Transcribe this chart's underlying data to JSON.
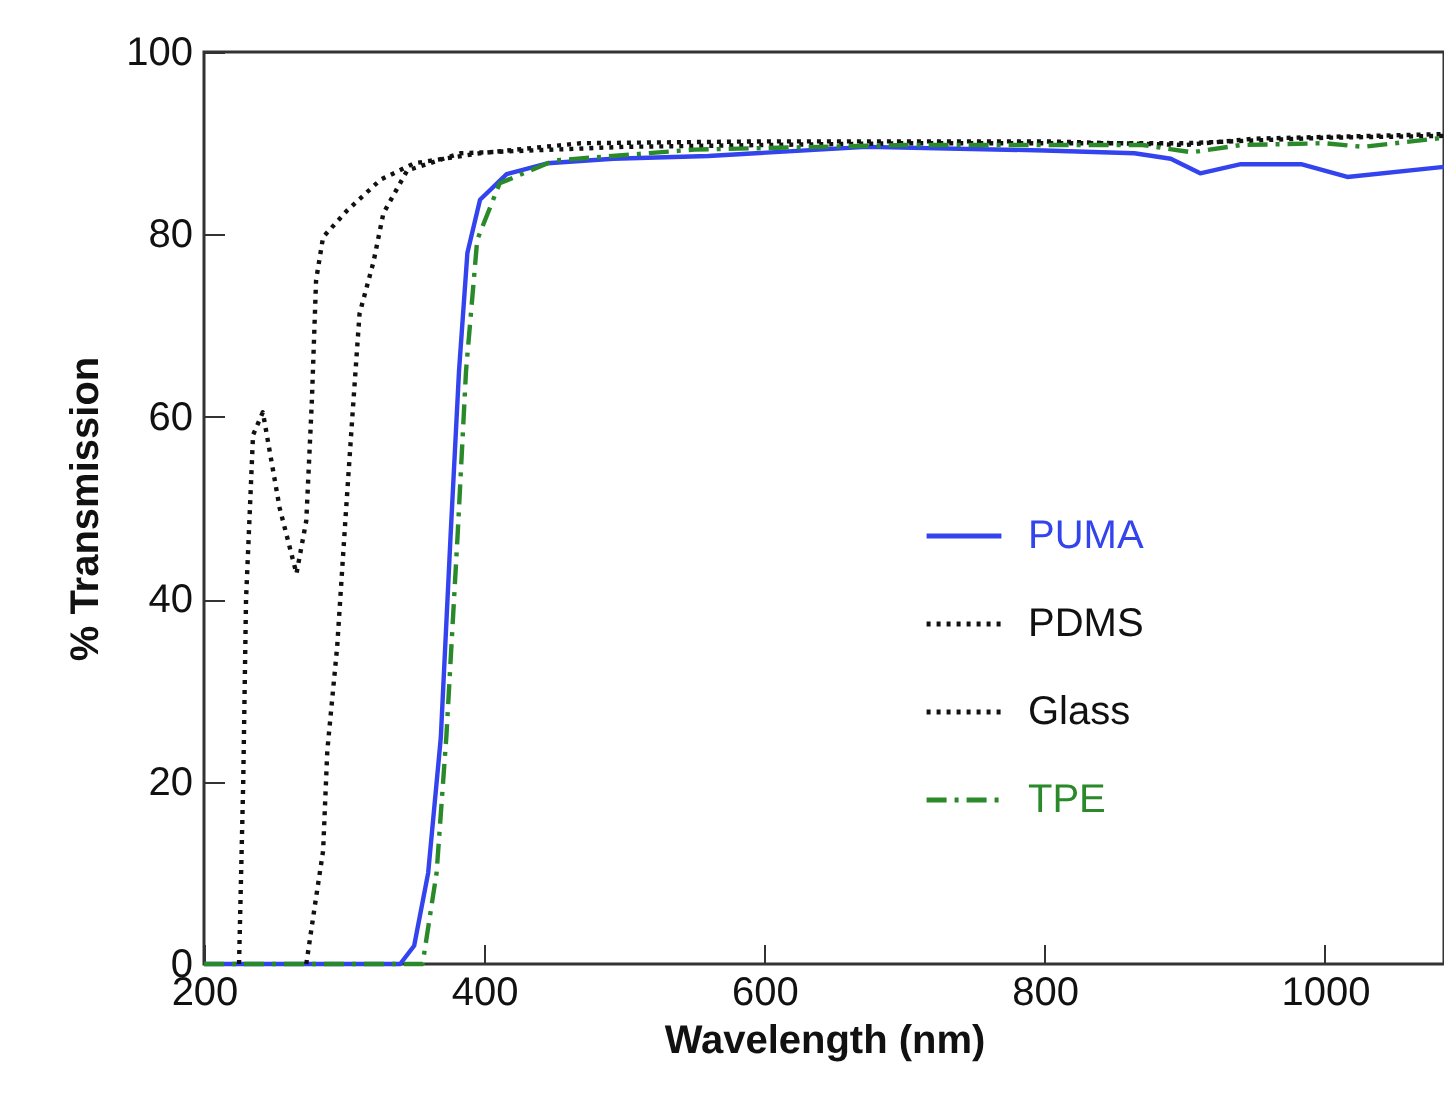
{
  "chart_data": {
    "type": "line",
    "xlabel": "Wavelength (nm)",
    "ylabel": "% Transmission",
    "xlim": [
      200,
      1085
    ],
    "ylim": [
      0,
      100
    ],
    "xticks": [
      200,
      400,
      600,
      800,
      1000
    ],
    "yticks": [
      0,
      20,
      40,
      60,
      80,
      100
    ],
    "grid": false,
    "legend": "right",
    "series": [
      {
        "name": "PUMA",
        "color": "#3344ee",
        "line_style": "solid",
        "x": [
          200,
          340,
          350,
          360,
          369,
          376,
          382,
          388,
          397,
          416,
          445,
          492,
          560,
          673,
          800,
          864,
          890,
          911,
          940,
          983,
          1016,
          1085
        ],
        "values": [
          0,
          0,
          2,
          10,
          24.8,
          47,
          65,
          78,
          83.8,
          86.6,
          87.8,
          88.3,
          88.6,
          89.6,
          89.2,
          88.9,
          88.3,
          86.7,
          87.7,
          87.7,
          86.3,
          87.4
        ]
      },
      {
        "name": "PDMS",
        "color": "#111111",
        "line_style": "dotted",
        "x": [
          225,
          228,
          230,
          235,
          242,
          254,
          266,
          273,
          277,
          280,
          285,
          302,
          326,
          350,
          397,
          469,
          600,
          800,
          900,
          950,
          1085
        ],
        "values": [
          0,
          20,
          40,
          58,
          60.5,
          50,
          42.8,
          48.6,
          61.8,
          75,
          79.7,
          82.6,
          86,
          87.8,
          88.9,
          90,
          90.2,
          90.2,
          89.8,
          90.5,
          91
        ]
      },
      {
        "name": "Glass",
        "color": "#111111",
        "line_style": "dotted",
        "x": [
          273,
          280,
          285,
          288,
          295,
          301,
          306,
          311,
          321,
          328,
          345,
          383,
          500,
          700,
          900,
          1000,
          1085
        ],
        "values": [
          0,
          7.3,
          12.4,
          23.4,
          34.7,
          48.9,
          60.3,
          71.3,
          77,
          82.3,
          87,
          88.9,
          89.6,
          90,
          90,
          90.6,
          90.8
        ]
      },
      {
        "name": "TPE",
        "color": "#2a8a2a",
        "line_style": "dashed",
        "x": [
          200,
          356,
          366,
          373,
          381,
          387,
          395,
          411,
          450,
          550,
          700,
          870,
          905,
          940,
          1000,
          1027,
          1085
        ],
        "values": [
          0,
          0,
          10,
          25,
          47,
          65,
          79.4,
          85.6,
          88.1,
          89.3,
          89.8,
          89.8,
          89,
          89.8,
          90,
          89.6,
          90.6
        ]
      }
    ]
  }
}
